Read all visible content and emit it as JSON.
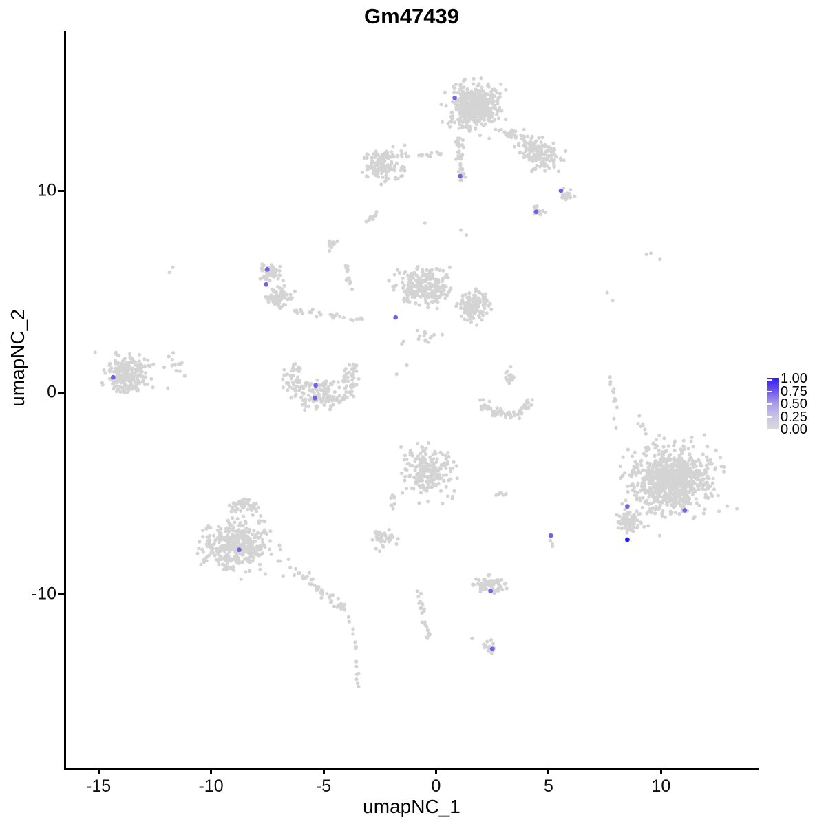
{
  "chart_data": {
    "type": "scatter",
    "title": "Gm47439",
    "xlabel": "umapNC_1",
    "ylabel": "umapNC_2",
    "x_ticks": [
      -15,
      -10,
      -5,
      0,
      5,
      10
    ],
    "y_ticks": [
      10,
      0,
      -10
    ],
    "xlim": [
      -16.44,
      14.36
    ],
    "ylim": [
      -18.63,
      17.92
    ],
    "grid": false,
    "legend_position": "right",
    "point_color": "#d4d4d4",
    "highlight_colors": {
      "mid": "#7a5fe3",
      "high": "#2418eb"
    },
    "legend": {
      "breaks": [
        "1.00",
        "0.75",
        "0.50",
        "0.25",
        "0.00"
      ],
      "break_values": [
        1.0,
        0.75,
        0.5,
        0.25,
        0.0
      ],
      "gradient_top_to_bottom": [
        "#2b1cf2",
        "#6f54ee",
        "#a89ae9",
        "#c9c3e6",
        "#d9d9d9"
      ]
    },
    "clusters": [
      {
        "shape": "blob",
        "cx": 1.7,
        "cy": 14.2,
        "rx": 1.45,
        "ry": 1.5,
        "rot": 0,
        "n": 470
      },
      {
        "shape": "strand",
        "x1": 1.0,
        "y1": 12.75,
        "x2": 1.15,
        "y2": 10.6,
        "w": 0.22,
        "n": 40
      },
      {
        "shape": "strand",
        "x1": 2.7,
        "y1": 13.0,
        "x2": 4.1,
        "y2": 12.55,
        "w": 0.3,
        "n": 35
      },
      {
        "shape": "blob",
        "cx": 4.6,
        "cy": 11.8,
        "rx": 1.25,
        "ry": 0.95,
        "rot": -30,
        "n": 160
      },
      {
        "shape": "blob",
        "cx": 5.75,
        "cy": 9.85,
        "rx": 0.45,
        "ry": 0.4,
        "rot": 0,
        "n": 22
      },
      {
        "shape": "blob",
        "cx": 4.55,
        "cy": 8.95,
        "rx": 0.45,
        "ry": 0.32,
        "rot": 0,
        "n": 20
      },
      {
        "shape": "blob",
        "cx": -2.35,
        "cy": 11.35,
        "rx": 1.25,
        "ry": 0.95,
        "rot": 0,
        "n": 140
      },
      {
        "shape": "strand",
        "x1": -1.15,
        "y1": 11.7,
        "x2": 0.4,
        "y2": 11.85,
        "w": 0.18,
        "n": 14
      },
      {
        "shape": "strand",
        "x1": -3.1,
        "y1": 8.45,
        "x2": -2.55,
        "y2": 8.95,
        "w": 0.13,
        "n": 11
      },
      {
        "shape": "blob",
        "cx": -4.6,
        "cy": 7.3,
        "rx": 0.3,
        "ry": 0.45,
        "rot": 0,
        "n": 11
      },
      {
        "shape": "strand",
        "x1": -4.05,
        "y1": 6.5,
        "x2": -3.65,
        "y2": 4.75,
        "w": 0.15,
        "n": 14
      },
      {
        "shape": "blob",
        "cx": -7.35,
        "cy": 5.95,
        "rx": 0.6,
        "ry": 0.55,
        "rot": 0,
        "n": 65
      },
      {
        "shape": "blob",
        "cx": -6.95,
        "cy": 4.75,
        "rx": 0.8,
        "ry": 0.65,
        "rot": 20,
        "n": 75
      },
      {
        "shape": "strand",
        "x1": -6.25,
        "y1": 4.05,
        "x2": -3.3,
        "y2": 3.55,
        "w": 0.22,
        "n": 28
      },
      {
        "shape": "blob",
        "cx": -0.55,
        "cy": 5.2,
        "rx": 1.55,
        "ry": 1.2,
        "rot": 0,
        "n": 250
      },
      {
        "shape": "blob",
        "cx": 1.65,
        "cy": 4.3,
        "rx": 0.95,
        "ry": 0.85,
        "rot": 0,
        "n": 140
      },
      {
        "shape": "blob",
        "cx": -0.6,
        "cy": 2.7,
        "rx": 1.2,
        "ry": 0.7,
        "rot": 0,
        "n": 16
      },
      {
        "shape": "blob",
        "cx": 3.25,
        "cy": 0.75,
        "rx": 0.35,
        "ry": 0.75,
        "rot": 0,
        "n": 16
      },
      {
        "shape": "arc",
        "cx": 3.15,
        "cy": -0.05,
        "r": 1.1,
        "a0": 195,
        "a1": 345,
        "jr": 0.16,
        "n": 70
      },
      {
        "shape": "strand",
        "x1": 7.7,
        "y1": 0.9,
        "x2": 8.0,
        "y2": -0.75,
        "w": 0.12,
        "n": 11
      },
      {
        "shape": "blob",
        "cx": 10.45,
        "cy": -4.35,
        "rx": 2.45,
        "ry": 2.25,
        "rot": 15,
        "n": 820
      },
      {
        "shape": "blob",
        "cx": 8.6,
        "cy": -6.4,
        "rx": 0.7,
        "ry": 0.85,
        "rot": 0,
        "n": 80
      },
      {
        "shape": "strand",
        "x1": 8.95,
        "y1": -1.15,
        "x2": 9.3,
        "y2": -2.0,
        "w": 0.2,
        "n": 7
      },
      {
        "shape": "blob",
        "cx": -0.35,
        "cy": -3.95,
        "rx": 1.45,
        "ry": 1.55,
        "rot": 20,
        "n": 230
      },
      {
        "shape": "strand",
        "x1": -1.8,
        "y1": -4.9,
        "x2": -2.05,
        "y2": -6.0,
        "w": 0.13,
        "n": 10
      },
      {
        "shape": "blob",
        "cx": 2.85,
        "cy": -5.05,
        "rx": 0.5,
        "ry": 0.16,
        "rot": 0,
        "n": 9
      },
      {
        "shape": "blob",
        "cx": -2.45,
        "cy": -7.2,
        "rx": 0.72,
        "ry": 0.65,
        "rot": 0,
        "n": 42
      },
      {
        "shape": "strand",
        "x1": 5.05,
        "y1": -7.35,
        "x2": 5.2,
        "y2": -7.7,
        "w": 0.07,
        "n": 3
      },
      {
        "shape": "strand",
        "x1": -0.95,
        "y1": -9.05,
        "x2": -0.3,
        "y2": -12.25,
        "w": 0.17,
        "n": 24
      },
      {
        "shape": "blob",
        "cx": 2.45,
        "cy": -9.55,
        "rx": 0.95,
        "ry": 0.58,
        "rot": 0,
        "n": 70
      },
      {
        "shape": "blob",
        "cx": 2.35,
        "cy": -12.6,
        "rx": 0.4,
        "ry": 0.5,
        "rot": 0,
        "n": 18
      },
      {
        "shape": "blob",
        "cx": -8.8,
        "cy": -7.6,
        "rx": 1.95,
        "ry": 1.6,
        "rot": 0,
        "n": 400
      },
      {
        "shape": "blob",
        "cx": -8.55,
        "cy": -5.65,
        "rx": 0.8,
        "ry": 0.55,
        "rot": 0,
        "n": 55
      },
      {
        "shape": "strand",
        "x1": -6.75,
        "y1": -8.3,
        "x2": -4.1,
        "y2": -10.75,
        "w": 0.38,
        "n": 50
      },
      {
        "shape": "strand",
        "x1": -3.95,
        "y1": -11.1,
        "x2": -3.5,
        "y2": -12.7,
        "w": 0.16,
        "n": 9
      },
      {
        "shape": "strand",
        "x1": -3.55,
        "y1": -13.1,
        "x2": -3.45,
        "y2": -14.8,
        "w": 0.1,
        "n": 7
      },
      {
        "shape": "blob",
        "cx": -13.75,
        "cy": 0.95,
        "rx": 1.35,
        "ry": 1.3,
        "rot": 0,
        "n": 240
      },
      {
        "shape": "blob",
        "cx": -11.65,
        "cy": 1.2,
        "rx": 0.65,
        "ry": 1.4,
        "rot": 0,
        "n": 13
      },
      {
        "shape": "arc",
        "cx": -5.1,
        "cy": 0.75,
        "r": 1.35,
        "a0": 150,
        "a1": 390,
        "jr": 0.3,
        "n": 140
      },
      {
        "shape": "blob",
        "cx": -5.15,
        "cy": 0.1,
        "rx": 1.0,
        "ry": 0.65,
        "rot": 0,
        "n": 60
      },
      {
        "shape": "dots",
        "pts": [
          [
            7.85,
            4.55
          ],
          [
            7.6,
            4.95
          ],
          [
            9.35,
            6.85
          ],
          [
            9.55,
            6.9
          ],
          [
            9.95,
            6.6
          ],
          [
            8.0,
            -1.75
          ],
          [
            7.9,
            -1.3
          ],
          [
            1.1,
            8.05
          ],
          [
            1.35,
            7.8
          ],
          [
            -0.5,
            8.4
          ],
          [
            1.6,
            -12.2
          ],
          [
            -11.7,
            6.2
          ],
          [
            -11.85,
            5.95
          ],
          [
            -1.3,
            1.35
          ],
          [
            -1.75,
            0.9
          ]
        ]
      }
    ],
    "highlighted_cells": [
      {
        "x": 0.83,
        "y": 14.6,
        "value": 0.5
      },
      {
        "x": 1.07,
        "y": 10.72,
        "value": 0.5
      },
      {
        "x": 5.55,
        "y": 10.0,
        "value": 0.5
      },
      {
        "x": 4.45,
        "y": 8.95,
        "value": 0.5
      },
      {
        "x": -7.5,
        "y": 6.1,
        "value": 0.5
      },
      {
        "x": -7.55,
        "y": 5.35,
        "value": 0.5
      },
      {
        "x": -1.8,
        "y": 3.72,
        "value": 0.5
      },
      {
        "x": -14.35,
        "y": 0.75,
        "value": 0.5
      },
      {
        "x": -5.35,
        "y": 0.35,
        "value": 0.5
      },
      {
        "x": -5.38,
        "y": -0.28,
        "value": 0.5
      },
      {
        "x": -8.75,
        "y": -7.8,
        "value": 0.5
      },
      {
        "x": 8.5,
        "y": -5.65,
        "value": 0.5
      },
      {
        "x": 11.05,
        "y": -5.85,
        "value": 0.5
      },
      {
        "x": 8.5,
        "y": -7.3,
        "value": 1.0
      },
      {
        "x": 5.1,
        "y": -7.1,
        "value": 0.5
      },
      {
        "x": 2.42,
        "y": -9.85,
        "value": 0.5
      },
      {
        "x": 2.5,
        "y": -12.72,
        "value": 0.5
      }
    ]
  }
}
